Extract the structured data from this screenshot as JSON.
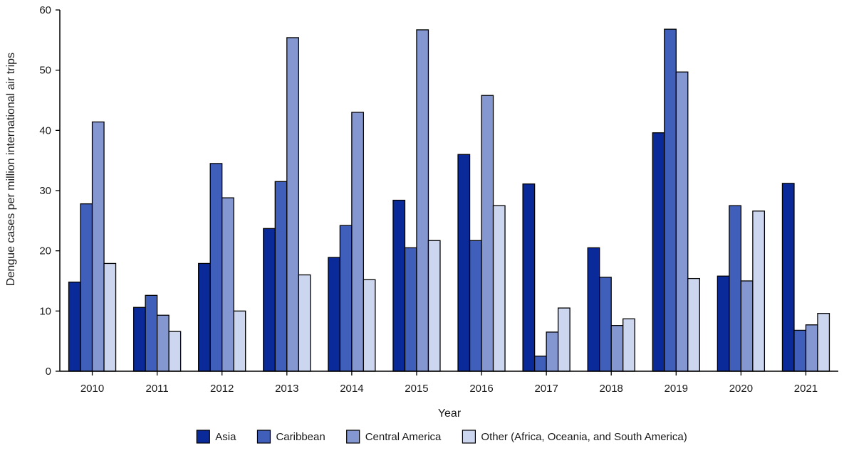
{
  "chart_data": {
    "type": "bar",
    "xlabel": "Year",
    "ylabel": "Dengue cases per million international air trips",
    "ylim": [
      0,
      60
    ],
    "yticks": [
      0,
      10,
      20,
      30,
      40,
      50,
      60
    ],
    "grid": false,
    "legend_position": "bottom",
    "categories": [
      "2010",
      "2011",
      "2012",
      "2013",
      "2014",
      "2015",
      "2016",
      "2017",
      "2018",
      "2019",
      "2020",
      "2021"
    ],
    "series": [
      {
        "name": "Asia",
        "color": "#0a2a9a",
        "values": [
          14.8,
          10.6,
          17.9,
          23.7,
          18.9,
          28.4,
          36.0,
          31.1,
          20.5,
          39.6,
          15.8,
          31.2
        ]
      },
      {
        "name": "Caribbean",
        "color": "#3f5fba",
        "values": [
          27.8,
          12.6,
          34.5,
          31.5,
          24.2,
          20.5,
          21.7,
          2.5,
          15.6,
          56.8,
          27.5,
          6.8
        ]
      },
      {
        "name": "Central America",
        "color": "#8597d1",
        "values": [
          41.4,
          9.3,
          28.8,
          55.4,
          43.0,
          56.7,
          45.8,
          6.5,
          7.6,
          49.7,
          15.0,
          7.7
        ]
      },
      {
        "name": "Other (Africa, Oceania, and South America)",
        "color": "#ccd6ef",
        "values": [
          17.9,
          6.6,
          10.0,
          16.0,
          15.2,
          21.7,
          27.5,
          10.5,
          8.7,
          15.4,
          26.6,
          9.6
        ]
      }
    ]
  }
}
